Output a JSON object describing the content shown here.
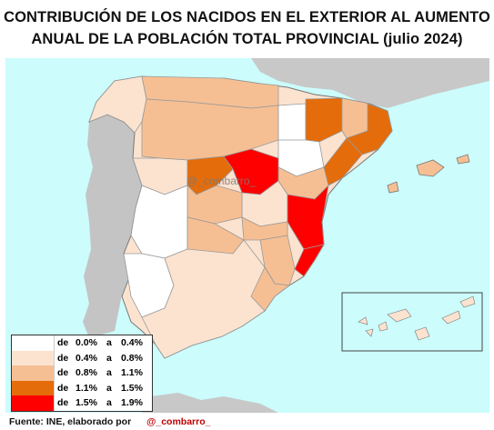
{
  "title_line1": "CONTRIBUCIÓN DE LOS NACIDOS EN EL EXTERIOR AL AUMENTO",
  "title_line2": "ANUAL DE LA POBLACIÓN TOTAL PROVINCIAL  (julio 2024)",
  "watermark": "@_combarro_",
  "legend": [
    {
      "de": "de",
      "from": "0.0%",
      "a": "a",
      "to": "0.4%",
      "color": "#ffffff"
    },
    {
      "de": "de",
      "from": "0.4%",
      "a": "a",
      "to": "0.8%",
      "color": "#fbe3d0"
    },
    {
      "de": "de",
      "from": "0.8%",
      "a": "a",
      "to": "1.1%",
      "color": "#f6bf93"
    },
    {
      "de": "de",
      "from": "1.1%",
      "a": "a",
      "to": "1.5%",
      "color": "#e46c0a"
    },
    {
      "de": "de",
      "from": "1.5%",
      "a": "a",
      "to": "1.9%",
      "color": "#ff0000"
    }
  ],
  "source_label": "Fuente: INE, elaborado por",
  "source_handle": "@_combarro_"
}
